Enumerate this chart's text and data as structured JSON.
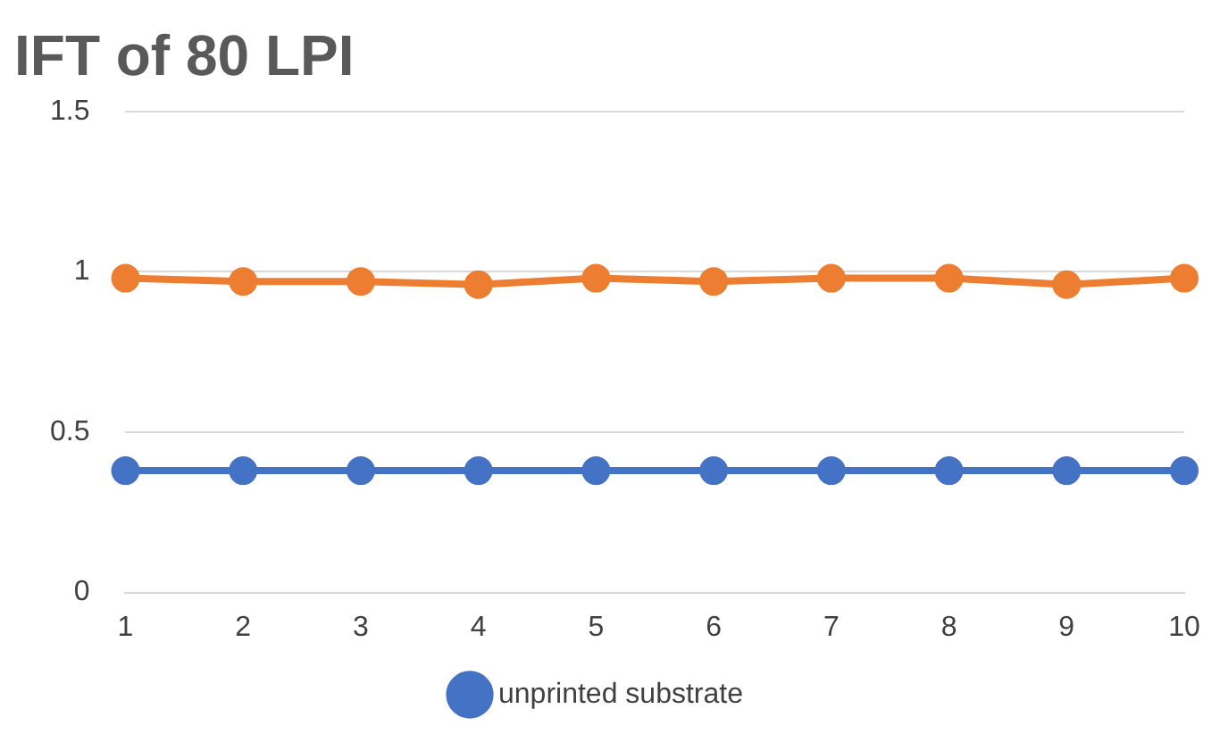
{
  "chart_data": {
    "type": "line",
    "title": "IFT of 80 LPI",
    "categories": [
      "1",
      "2",
      "3",
      "4",
      "5",
      "6",
      "7",
      "8",
      "9",
      "10"
    ],
    "series": [
      {
        "name": "unprinted substrate",
        "color": "#4472c4",
        "values": [
          0.38,
          0.38,
          0.38,
          0.38,
          0.38,
          0.38,
          0.38,
          0.38,
          0.38,
          0.38
        ]
      },
      {
        "color": "#ed7d31",
        "values": [
          0.98,
          0.97,
          0.97,
          0.96,
          0.98,
          0.97,
          0.98,
          0.98,
          0.96,
          0.98
        ]
      }
    ],
    "ylim": [
      0,
      1.5
    ],
    "yticks": [
      0,
      0.5,
      1,
      1.5
    ],
    "grid": "y",
    "legend": "bottom",
    "marker": "circle",
    "line_style": "solid"
  }
}
